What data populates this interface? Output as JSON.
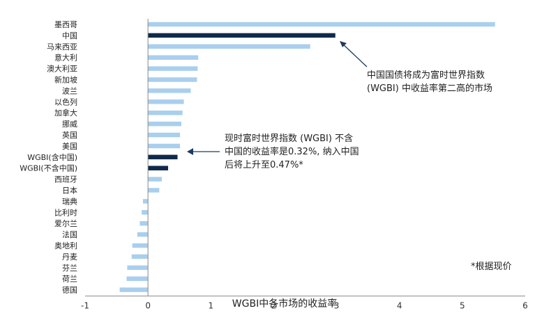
{
  "chart_data": {
    "type": "bar",
    "orientation": "horizontal",
    "categories": [
      "墨西哥",
      "中国",
      "马来西亚",
      "意大利",
      "澳大利亚",
      "新加坡",
      "波兰",
      "以色列",
      "加拿大",
      "挪威",
      "英国",
      "美国",
      "WGBI(含中国)",
      "WGBI(不含中国)",
      "西班牙",
      "日本",
      "瑞典",
      "比利时",
      "爱尔兰",
      "法国",
      "奥地利",
      "丹麦",
      "芬兰",
      "荷兰",
      "德国"
    ],
    "values": [
      5.52,
      2.98,
      2.58,
      0.8,
      0.79,
      0.78,
      0.68,
      0.57,
      0.55,
      0.53,
      0.51,
      0.51,
      0.47,
      0.32,
      0.22,
      0.18,
      -0.08,
      -0.1,
      -0.13,
      -0.17,
      -0.25,
      -0.26,
      -0.33,
      -0.34,
      -0.45
    ],
    "highlight": [
      "中国",
      "WGBI(含中国)",
      "WGBI(不含中国)"
    ],
    "colors": {
      "default": "#a9cfee",
      "highlight": "#0f2a4a"
    },
    "xlabel": "WGBI中各市场的收益率",
    "xlim": [
      -1,
      6
    ],
    "xticks": [
      -1,
      0,
      1,
      2,
      3,
      4,
      5,
      6
    ],
    "grid": false
  },
  "annotations": {
    "china_line1": "中国国债将成为富时世界指数",
    "china_line2": "(WGBI) 中收益率第二高的市场",
    "wgbi_line1": "现时富时世界指数 (WGBI) 不含",
    "wgbi_line2": "中国的收益率是0.32%, 纳入中国",
    "wgbi_line3": "后将上升至0.47%*",
    "footnote": "*根据现价"
  }
}
